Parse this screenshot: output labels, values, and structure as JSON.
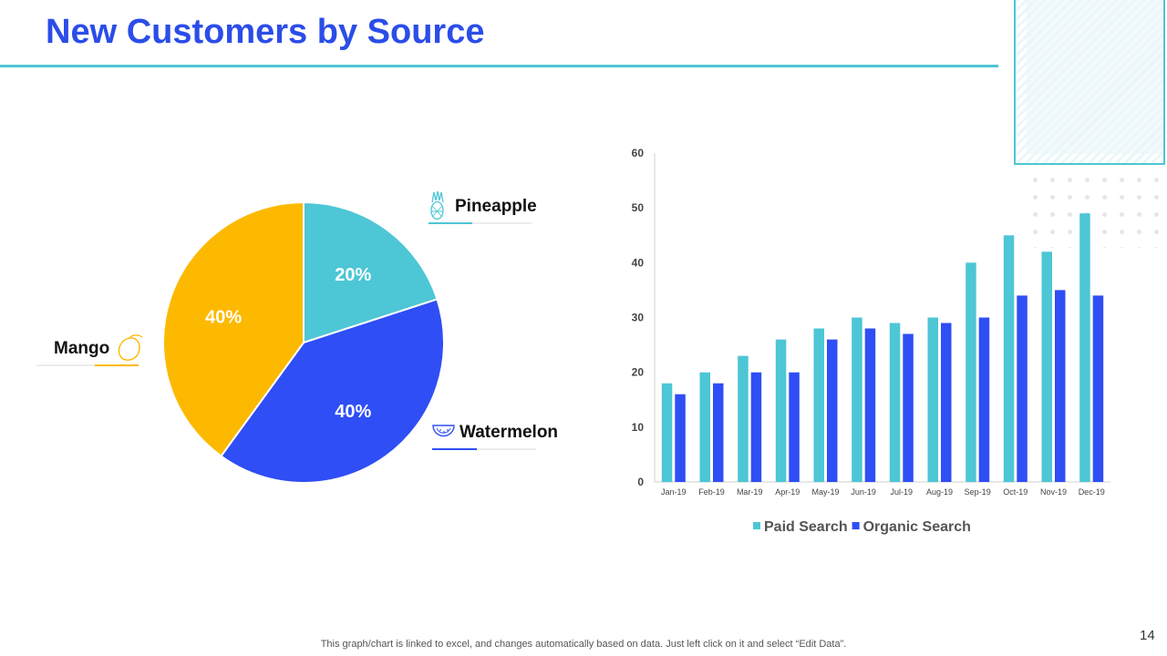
{
  "slide": {
    "title": "New Customers by Source",
    "footnote": "This graph/chart is linked to excel,  and changes automatically based on data. Just left click on it and select “Edit Data”.",
    "page_number": "14"
  },
  "colors": {
    "title": "#2b4de8",
    "accent": "#4dc6d6",
    "pineapple": "#4dc6d6",
    "watermelon": "#2f4ef5",
    "mango": "#fdb900",
    "paid_search": "#4dc6d6",
    "organic_search": "#2f4ef5"
  },
  "chart_data": [
    {
      "type": "pie",
      "slices": [
        {
          "label": "Pineapple",
          "value": 20,
          "value_label": "20%",
          "color": "#4dc6d6",
          "icon": "pineapple-icon"
        },
        {
          "label": "Watermelon",
          "value": 40,
          "value_label": "40%",
          "color": "#2f4ef5",
          "icon": "watermelon-icon"
        },
        {
          "label": "Mango",
          "value": 40,
          "value_label": "40%",
          "color": "#fdb900",
          "icon": "mango-icon"
        }
      ]
    },
    {
      "type": "bar",
      "categories": [
        "Jan-19",
        "Feb-19",
        "Mar-19",
        "Apr-19",
        "May-19",
        "Jun-19",
        "Jul-19",
        "Aug-19",
        "Sep-19",
        "Oct-19",
        "Nov-19",
        "Dec-19"
      ],
      "series": [
        {
          "name": "Paid Search",
          "color": "#4dc6d6",
          "values": [
            18,
            20,
            23,
            26,
            28,
            30,
            29,
            30,
            40,
            45,
            42,
            49
          ]
        },
        {
          "name": "Organic Search",
          "color": "#2f4ef5",
          "values": [
            16,
            18,
            20,
            20,
            26,
            28,
            27,
            29,
            30,
            34,
            35,
            34
          ]
        }
      ],
      "ylim": [
        0,
        60
      ],
      "yticks": [
        0,
        10,
        20,
        30,
        40,
        50,
        60
      ],
      "legend_position": "bottom",
      "grid": false
    }
  ]
}
